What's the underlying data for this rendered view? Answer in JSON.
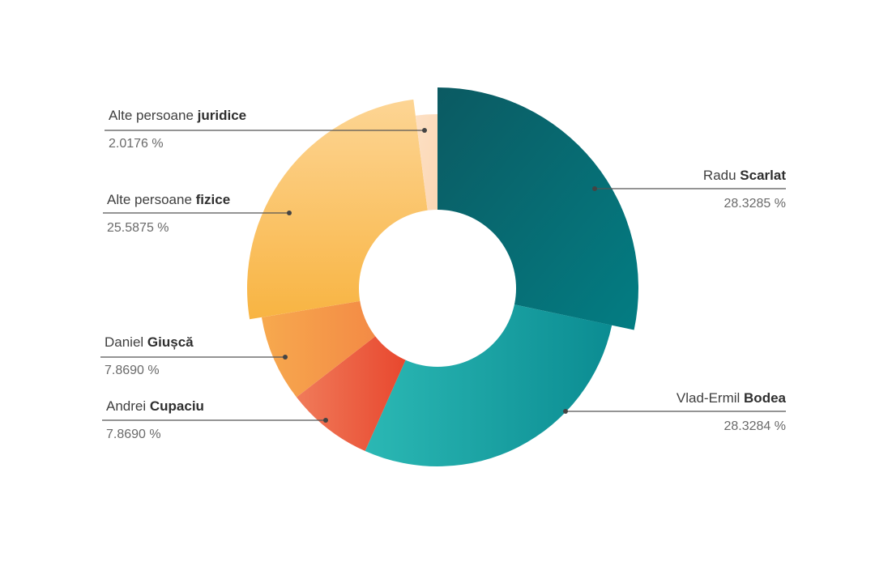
{
  "chart_data": {
    "type": "pie",
    "variant": "donut",
    "slices": [
      {
        "first": "Radu",
        "last": "Scarlat",
        "pct_label": "28.3285 %",
        "value": 28.3285,
        "colors": [
          "#0b5a62",
          "#037d83"
        ]
      },
      {
        "first": "Vlad-Ermil",
        "last": "Bodea",
        "pct_label": "28.3284 %",
        "value": 28.3284,
        "colors": [
          "#2bb8b4",
          "#0b8c92"
        ]
      },
      {
        "first": "Andrei",
        "last": "Cupaciu",
        "pct_label": "7.8690 %",
        "value": 7.869,
        "colors": [
          "#f07b5a",
          "#e8472e"
        ]
      },
      {
        "first": "Daniel",
        "last": "Giușcă",
        "pct_label": "7.8690 %",
        "value": 7.869,
        "colors": [
          "#f7a94e",
          "#f38a45"
        ]
      },
      {
        "first": "Alte persoane",
        "last": "fizice",
        "pct_label": "25.5875 %",
        "value": 25.5875,
        "colors": [
          "#fdd594",
          "#f8b442"
        ]
      },
      {
        "first": "Alte persoane",
        "last": "juridice",
        "pct_label": "2.0176 %",
        "value": 2.0176,
        "colors": [
          "#fde0c4",
          "#fbd7b4"
        ]
      }
    ]
  }
}
